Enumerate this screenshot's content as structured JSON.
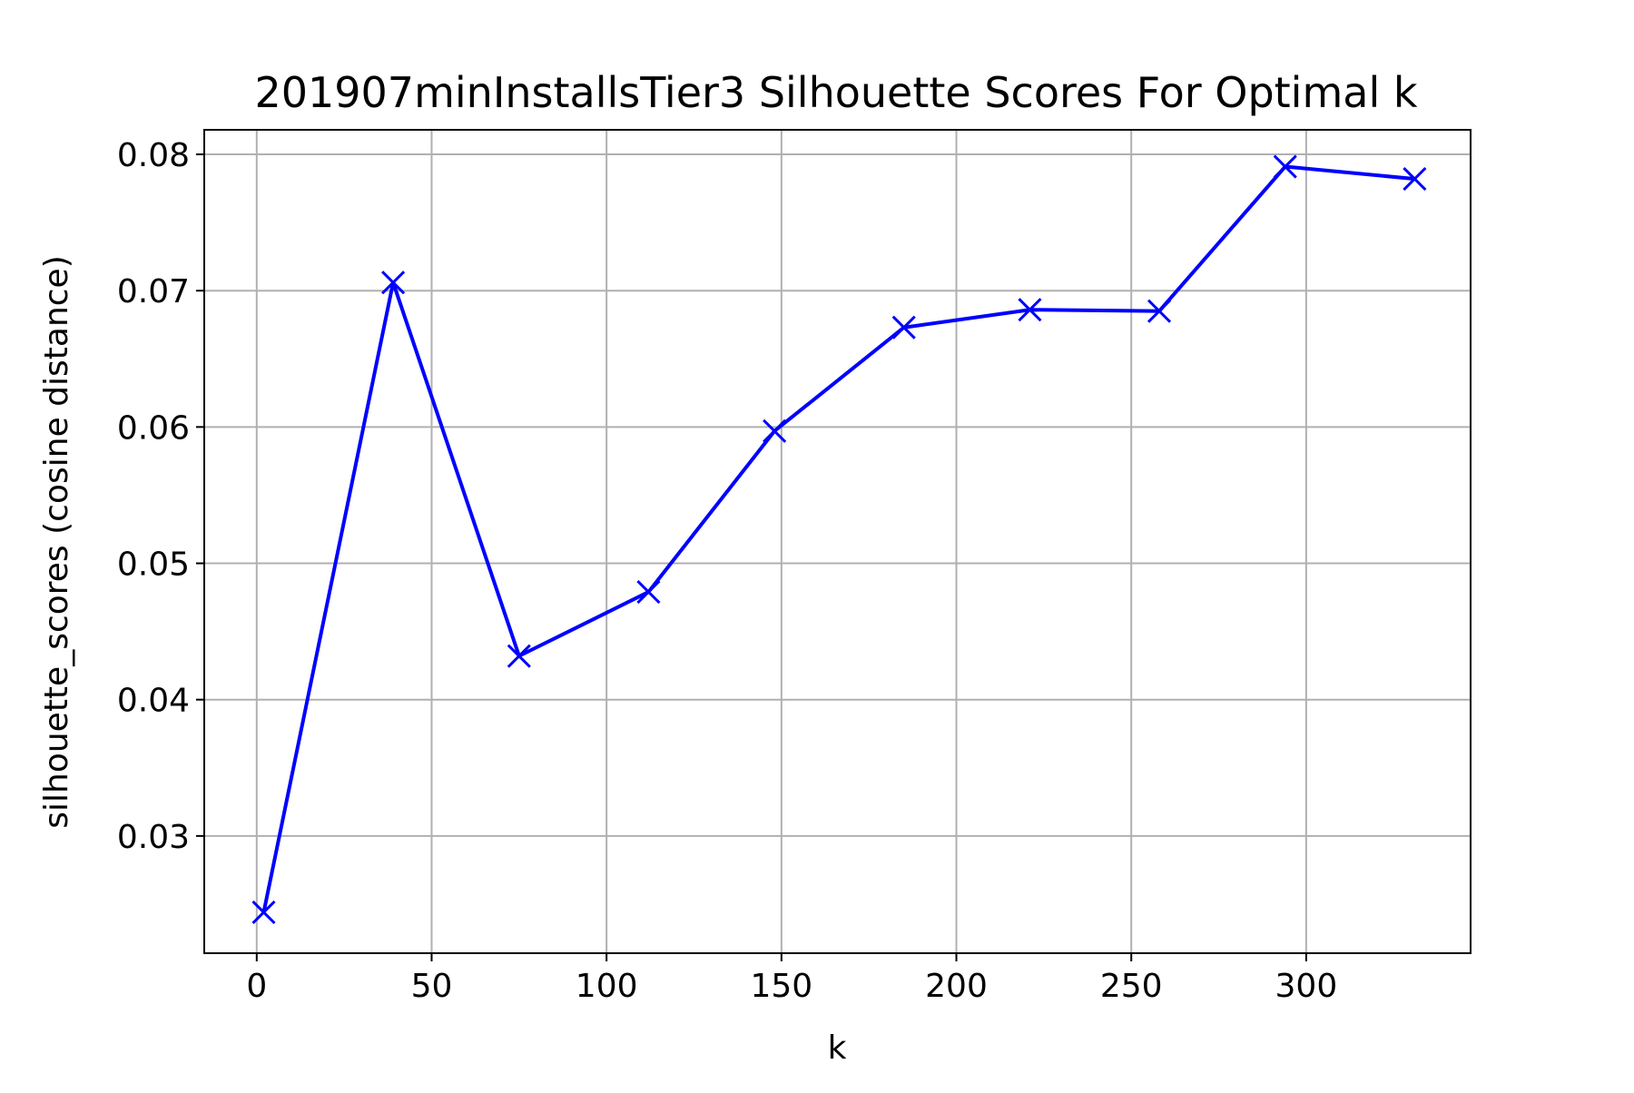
{
  "chart_data": {
    "type": "line",
    "title": "201907minInstallsTier3 Silhouette Scores For Optimal k",
    "xlabel": "k",
    "ylabel": "silhouette_scores (cosine distance)",
    "xlim": [
      -15,
      347
    ],
    "ylim": [
      0.0214,
      0.0818
    ],
    "xticks": [
      0,
      50,
      100,
      150,
      200,
      250,
      300
    ],
    "xtick_labels": [
      "0",
      "50",
      "100",
      "150",
      "200",
      "250",
      "300"
    ],
    "yticks": [
      0.03,
      0.04,
      0.05,
      0.06,
      0.07,
      0.08
    ],
    "ytick_labels": [
      "0.03",
      "0.04",
      "0.05",
      "0.06",
      "0.07",
      "0.08"
    ],
    "grid": true,
    "series": [
      {
        "color": "#0000ff",
        "marker": "x",
        "x": [
          2,
          39,
          75,
          112,
          148,
          185,
          221,
          258,
          294,
          331
        ],
        "y": [
          0.0244,
          0.0706,
          0.0432,
          0.0479,
          0.0597,
          0.0673,
          0.0686,
          0.0685,
          0.0791,
          0.0782
        ]
      }
    ]
  }
}
